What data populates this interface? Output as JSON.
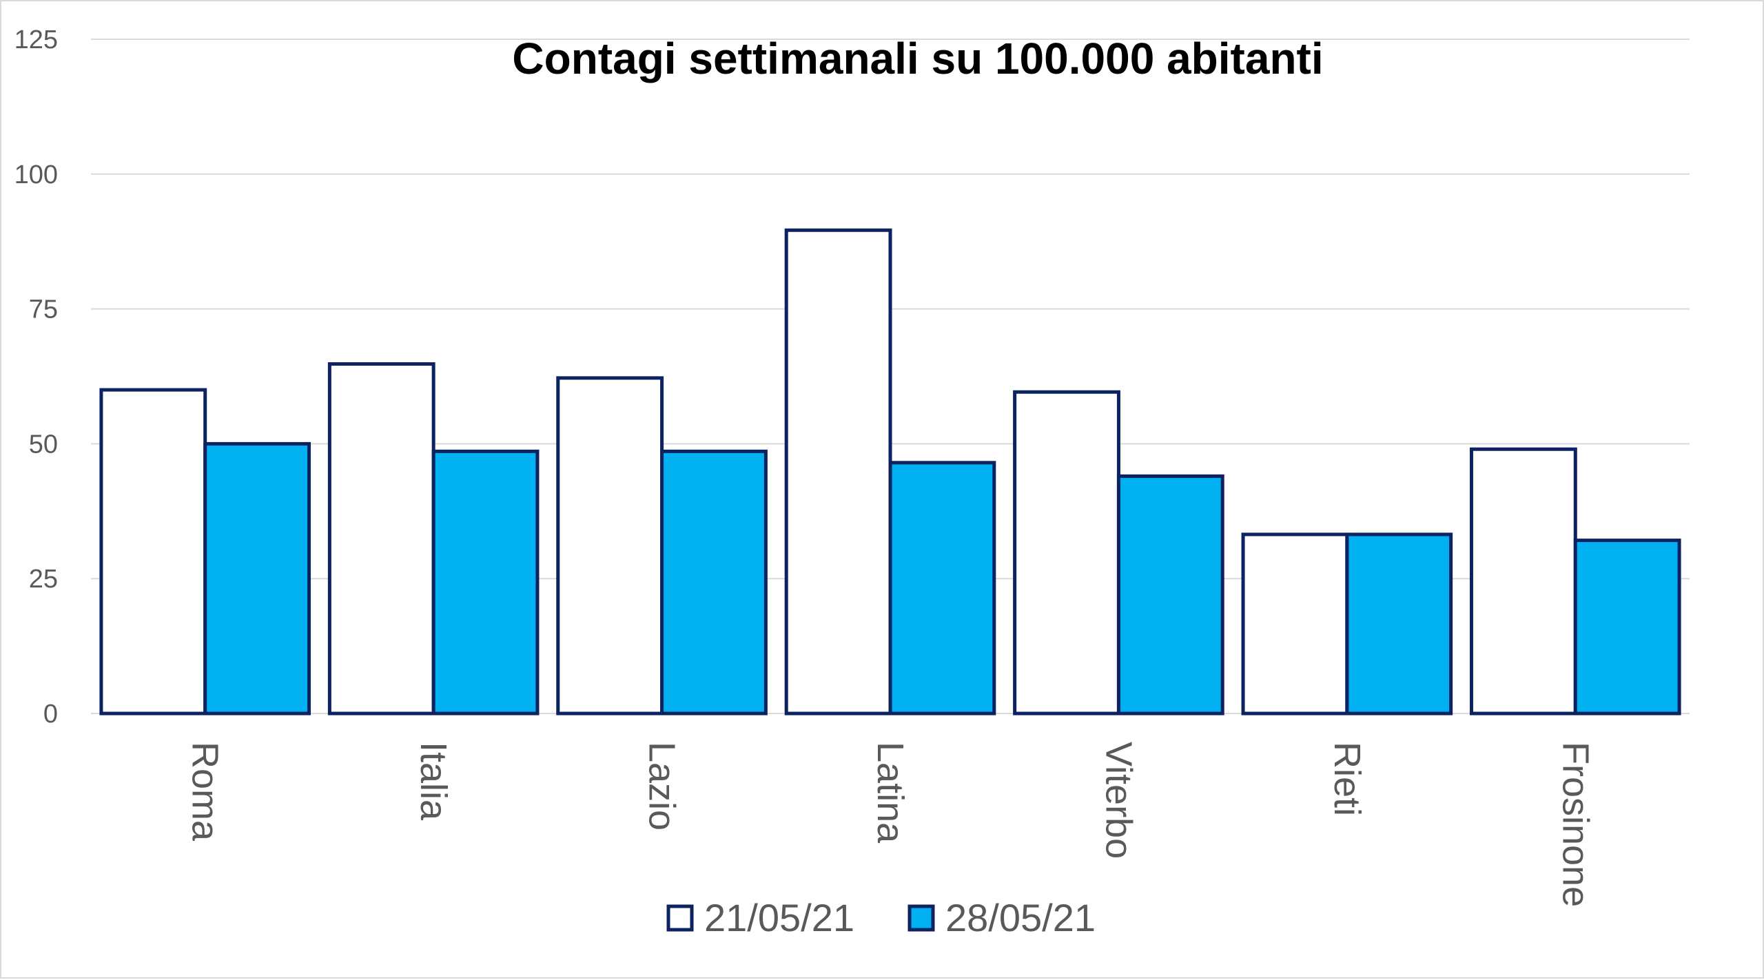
{
  "chart_data": {
    "type": "bar",
    "title": "Contagi settimanali su 100.000 abitanti",
    "xlabel": "",
    "ylabel": "",
    "ylim": [
      0,
      125
    ],
    "yticks": [
      0,
      25,
      50,
      75,
      100,
      125
    ],
    "ytick_labels": [
      "0",
      "25",
      "50",
      "75",
      "100",
      "125"
    ],
    "grid": true,
    "legend_position": "bottom",
    "categories": [
      "Roma",
      "Italia",
      "Lazio",
      "Latina",
      "Viterbo",
      "Rieti",
      "Frosinone"
    ],
    "series": [
      {
        "name": "21/05/21",
        "fill": "#ffffff",
        "stroke": "#0d2260",
        "values": [
          60,
          64.8,
          62.2,
          89.6,
          59.6,
          33.2,
          49
        ]
      },
      {
        "name": "28/05/21",
        "fill": "#00b0f0",
        "stroke": "#0d2260",
        "values": [
          50,
          48.6,
          48.6,
          46.5,
          44,
          33.2,
          32.1
        ]
      }
    ]
  }
}
